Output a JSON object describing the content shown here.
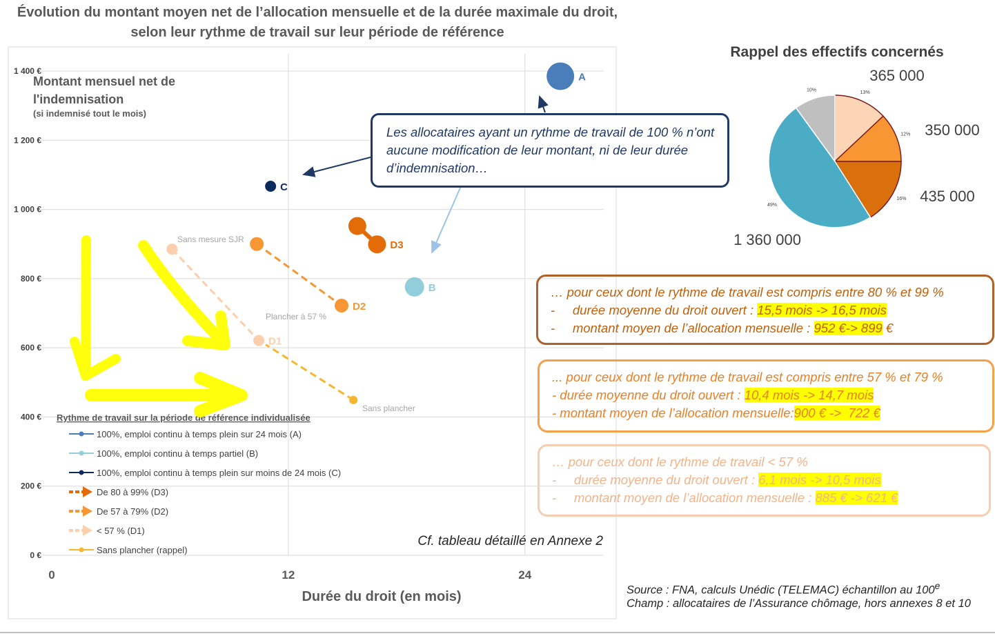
{
  "title": "Évolution du montant moyen net de l’allocation mensuelle et de la durée maximale du droit, selon leur rythme de travail sur leur période de référence",
  "chart_data": [
    {
      "type": "scatter",
      "y_title": "Montant mensuel net de l'indemnisation",
      "y_subtitle": "(si indemnisé tout le mois)",
      "x_title": "Durée du droit (en mois)",
      "xlim": [
        0,
        28
      ],
      "xticks": [
        0,
        12,
        24
      ],
      "ylim": [
        0,
        1400
      ],
      "yticks": [
        {
          "value": 0,
          "label": "0 €"
        },
        {
          "value": 200,
          "label": "200 €"
        },
        {
          "value": 400,
          "label": "400 €"
        },
        {
          "value": 600,
          "label": "600 €"
        },
        {
          "value": 800,
          "label": "800 €"
        },
        {
          "value": 1000,
          "label": "1 000 €"
        },
        {
          "value": 1200,
          "label": "1 200 €"
        },
        {
          "value": 1400,
          "label": "1 400 €"
        }
      ],
      "grid": true,
      "legend_title": "Rythme de travail sur la période de référence individualisée",
      "series": [
        {
          "name": "100%, emploi continu à temps plein sur 24 mois (A)",
          "color": "#4a7ebb",
          "x": [
            25.8
          ],
          "values": [
            1385
          ],
          "point_labels": [
            "A"
          ]
        },
        {
          "name": "100%, emploi continu à temps partiel (B)",
          "color": "#92cddc",
          "x": [
            18.4
          ],
          "values": [
            776
          ],
          "point_labels": [
            "B"
          ]
        },
        {
          "name": "100%, emploi continu à temps plein sur moins de 24 mois (C)",
          "color": "#0d2a5c",
          "x": [
            11.1
          ],
          "values": [
            1067
          ],
          "point_labels": [
            "C"
          ]
        },
        {
          "name": "De 80 à 99% (D3)",
          "color": "#e36c09",
          "x": [
            15.5,
            16.5
          ],
          "values": [
            952,
            899
          ],
          "point_labels": [
            null,
            "D3"
          ]
        },
        {
          "name": "De 57 à 79% (D2)",
          "color": "#f79632",
          "x": [
            10.4,
            14.7
          ],
          "values": [
            900,
            722
          ],
          "point_labels": [
            null,
            "D2"
          ]
        },
        {
          "name": "< 57 % (D1)",
          "color": "#fbcfae",
          "x": [
            6.1,
            10.5
          ],
          "values": [
            885,
            621
          ],
          "point_labels": [
            null,
            "D1"
          ]
        },
        {
          "name": "Sans plancher (rappel)",
          "color": "#f7b530",
          "x": [
            15.3
          ],
          "values": [
            449
          ]
        }
      ],
      "annotations": [
        "Sans mesure SJR",
        "Plancher à 57 %",
        "Sans plancher"
      ],
      "note": "Cf. tableau détaillé en Annexe 2"
    },
    {
      "type": "pie",
      "title": "Rappel des effectifs concernés",
      "values": [
        13,
        12,
        16,
        49,
        10
      ],
      "value_labels": [
        "13%",
        "12%",
        "16%",
        "49%",
        "10%"
      ],
      "count_labels": [
        "365 000",
        "350 000",
        "435 000",
        "1 360 000",
        null
      ],
      "colors": [
        "#fbd5b5",
        "#f79632",
        "#d9700b",
        "#4bacc6",
        "#bfbfbf"
      ]
    }
  ],
  "callout": "Les allocataires ayant un rythme de travail de 100 % n’ont aucune modification de leur montant, ni de leur durée d’indemnisation…",
  "boxes": [
    {
      "lines": [
        {
          "text": "… pour ceux dont le rythme de travail est compris entre 80 % et 99 %"
        },
        {
          "text": "-     durée moyenne du droit ouvert : ",
          "highlight": "15,5 mois -> 16,5 mois"
        },
        {
          "text": "-     montant moyen de l’allocation mensuelle : ",
          "highlight": "952 €-> 899",
          "after": " €"
        }
      ]
    },
    {
      "lines": [
        {
          "text": "... pour ceux dont le rythme de travail est compris entre 57 % et 79 %"
        },
        {
          "text": "- durée moyenne du droit ouvert : ",
          "highlight": "10,4 mois -> 14,7 mois"
        },
        {
          "text": "- montant moyen de l’allocation mensuelle:",
          "highlight": "900 € ->  722 €"
        }
      ]
    },
    {
      "lines": [
        {
          "text": "… pour ceux dont le rythme de travail < 57 %"
        },
        {
          "text": "-     durée moyenne du droit ouvert : ",
          "highlight": "6,1 mois -> 10,5 mois"
        },
        {
          "text": "-     montant moyen de l’allocation mensuelle : ",
          "highlight": "885 € -> 621 €"
        }
      ]
    }
  ],
  "source": {
    "text": "Source : FNA, calculs Unédic (TELEMAC) échantillon au 100",
    "sup": "e"
  },
  "champ": "Champ : allocataires de l’Assurance chômage, hors annexes 8 et 10"
}
